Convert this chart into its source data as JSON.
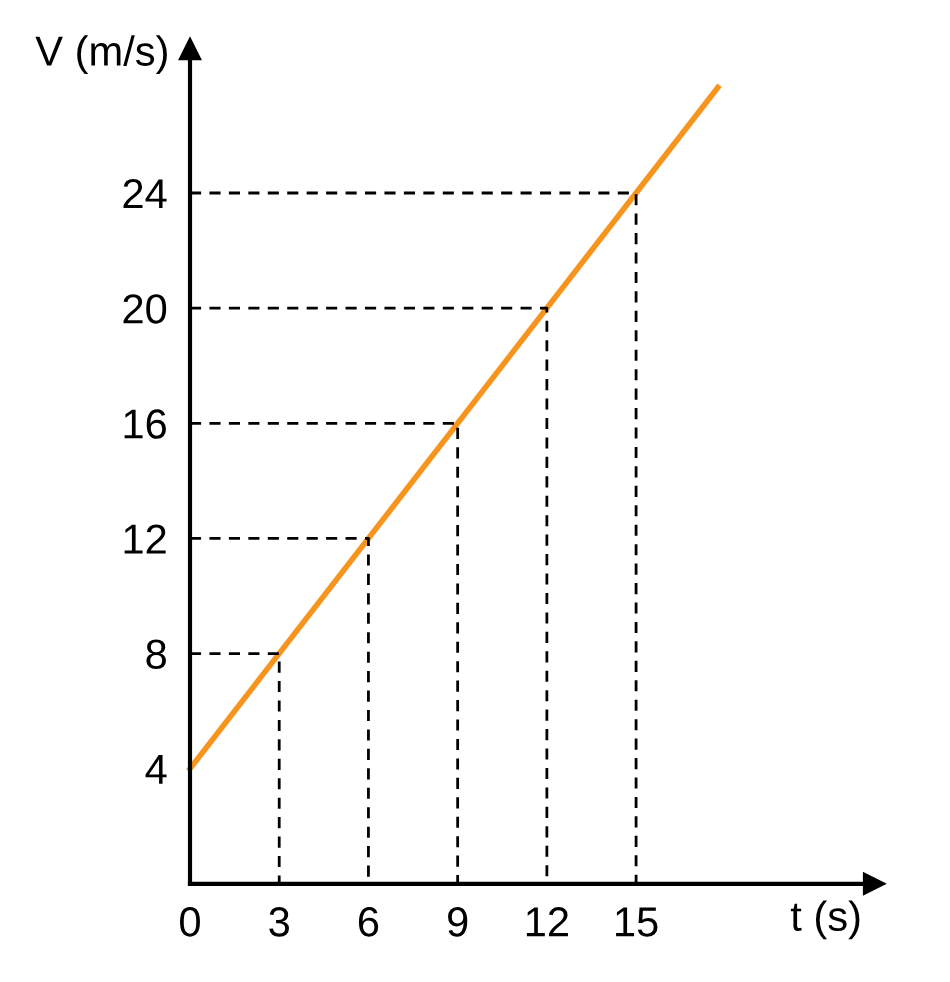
{
  "chart_data": {
    "type": "line",
    "xlabel": "t (s)",
    "ylabel": "V (m/s)",
    "xlim": [
      0,
      23
    ],
    "ylim": [
      0,
      29
    ],
    "xticks": [
      0,
      3,
      6,
      9,
      12,
      15
    ],
    "yticks": [
      4,
      8,
      12,
      16,
      20,
      24
    ],
    "grid": false,
    "legend": false,
    "marker": "none",
    "series": [
      {
        "color": "#f7941d",
        "x": [
          0,
          17.75
        ],
        "values": [
          4,
          27.67
        ],
        "line_style": "solid"
      },
      {
        "color": "#000000",
        "x": [
          0,
          3,
          3
        ],
        "values": [
          8,
          8,
          0
        ],
        "line_style": "dashed"
      },
      {
        "color": "#000000",
        "x": [
          0,
          6,
          6
        ],
        "values": [
          12,
          12,
          0
        ],
        "line_style": "dashed"
      },
      {
        "color": "#000000",
        "x": [
          0,
          9,
          9
        ],
        "values": [
          16,
          16,
          0
        ],
        "line_style": "dashed"
      },
      {
        "color": "#000000",
        "x": [
          0,
          12,
          12
        ],
        "values": [
          20,
          20,
          0
        ],
        "line_style": "dashed"
      },
      {
        "color": "#000000",
        "x": [
          0,
          15,
          15
        ],
        "values": [
          24,
          24,
          0
        ],
        "line_style": "dashed"
      }
    ]
  }
}
